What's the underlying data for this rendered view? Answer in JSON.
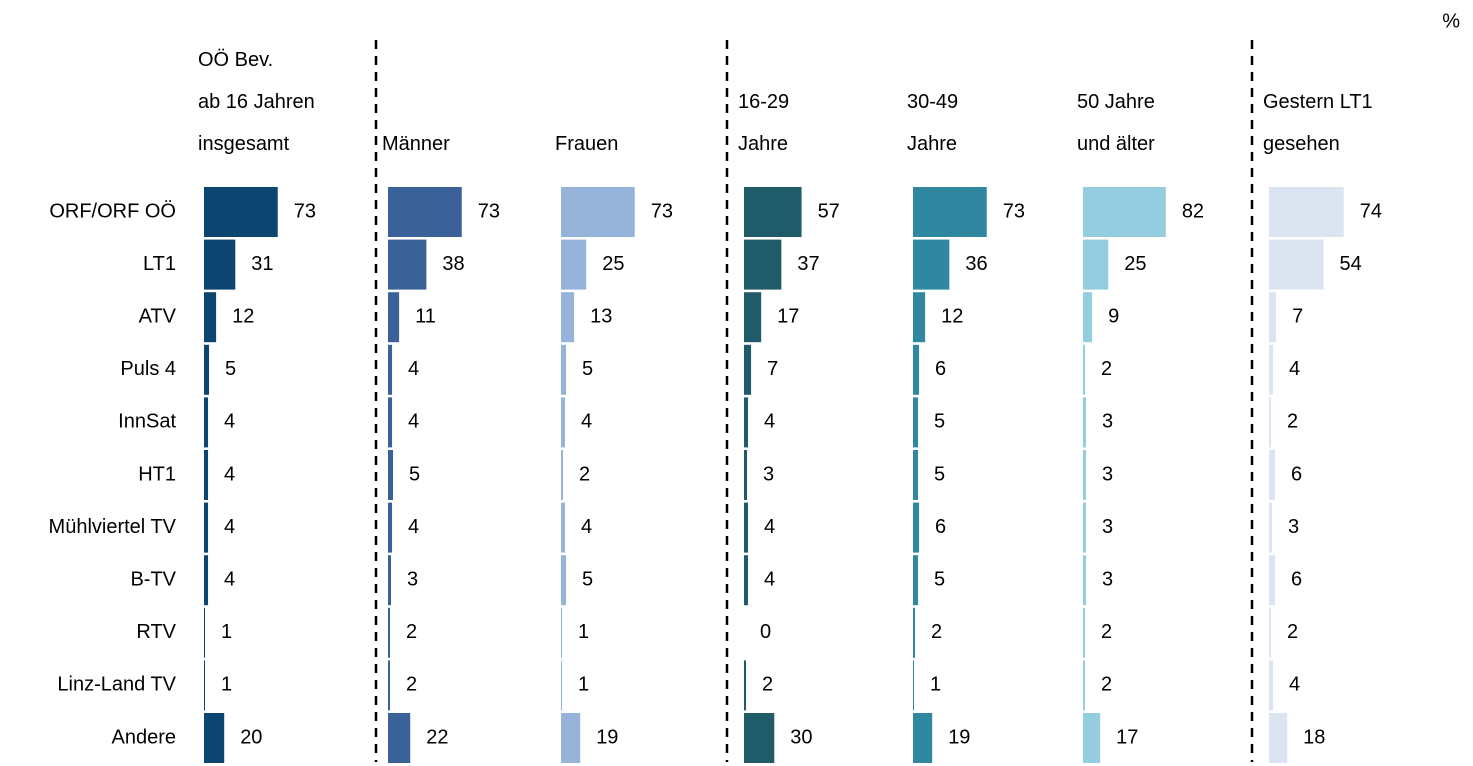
{
  "chart_data": {
    "type": "bar",
    "unit": "%",
    "categories": [
      "ORF/ORF OÖ",
      "LT1",
      "ATV",
      "Puls 4",
      "InnSat",
      "HT1",
      "Mühlviertel TV",
      "B-TV",
      "RTV",
      "Linz-Land TV",
      "Andere"
    ],
    "series": [
      {
        "name": "OÖ Bev.\nab 16 Jahren\ninsgesamt",
        "color": "#0b4570",
        "values": [
          73,
          31,
          12,
          5,
          4,
          4,
          4,
          4,
          1,
          1,
          20
        ]
      },
      {
        "name": "Männer",
        "color": "#3a6198",
        "values": [
          73,
          38,
          11,
          4,
          4,
          5,
          4,
          3,
          2,
          2,
          22
        ]
      },
      {
        "name": "Frauen",
        "color": "#96b4da",
        "values": [
          73,
          25,
          13,
          5,
          4,
          2,
          4,
          5,
          1,
          1,
          19
        ]
      },
      {
        "name": "16-29\nJahre",
        "color": "#1f5b69",
        "values": [
          57,
          37,
          17,
          7,
          4,
          3,
          4,
          4,
          0,
          2,
          30
        ]
      },
      {
        "name": "30-49\nJahre",
        "color": "#2f889f",
        "values": [
          73,
          36,
          12,
          6,
          5,
          5,
          6,
          5,
          2,
          1,
          19
        ]
      },
      {
        "name": "50 Jahre\nund älter",
        "color": "#94cde0",
        "values": [
          82,
          25,
          9,
          2,
          3,
          3,
          3,
          3,
          2,
          2,
          17
        ]
      },
      {
        "name": "Gestern LT1\ngesehen",
        "color": "#dbe5f2",
        "values": [
          74,
          54,
          7,
          4,
          2,
          6,
          3,
          6,
          2,
          4,
          18
        ]
      }
    ]
  }
}
